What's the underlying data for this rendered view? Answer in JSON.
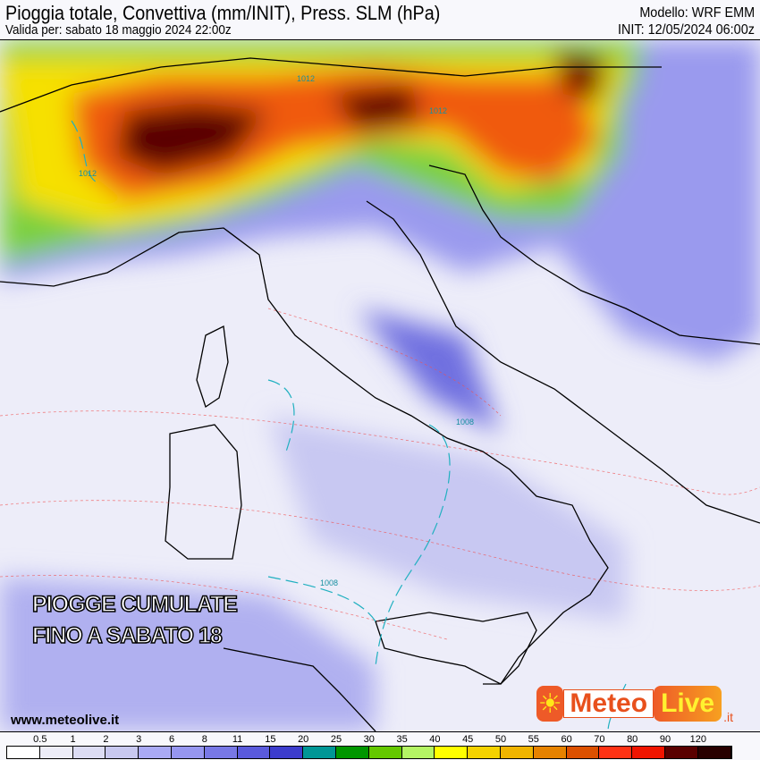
{
  "header": {
    "title": "Pioggia totale, Convettiva (mm/INIT), Press. SLM (hPa)",
    "valid": "Valida per: sabato 18 maggio 2024 22:00z",
    "model": "Modello: WRF EMM",
    "init": "INIT: 12/05/2024 06:00z"
  },
  "map": {
    "overlay_line1": "PIOGGE CUMULATE",
    "overlay_line2": "FINO A SABATO 18",
    "website": "www.meteolive.it",
    "isobar_labels": [
      "1012",
      "1012",
      "1012",
      "1008",
      "1008"
    ],
    "logo": {
      "text_meteo": "Meteo",
      "text_live": "Live",
      "suffix": ".it",
      "icon": "sun-icon"
    }
  },
  "legend": {
    "labels": [
      "0.5",
      "1",
      "2",
      "3",
      "6",
      "8",
      "11",
      "15",
      "20",
      "25",
      "30",
      "35",
      "40",
      "45",
      "50",
      "55",
      "60",
      "70",
      "80",
      "90",
      "120"
    ],
    "colors": [
      "#ffffff",
      "#ececf8",
      "#dcdcf4",
      "#c8c8f0",
      "#aaaaf5",
      "#9696f0",
      "#7878e6",
      "#5a5adc",
      "#3c3ccd",
      "#009696",
      "#009600",
      "#64c800",
      "#b4f564",
      "#ffff00",
      "#f5d200",
      "#f0b400",
      "#e68200",
      "#dc5000",
      "#ff3214",
      "#f01400",
      "#5a0000",
      "#280000"
    ]
  }
}
